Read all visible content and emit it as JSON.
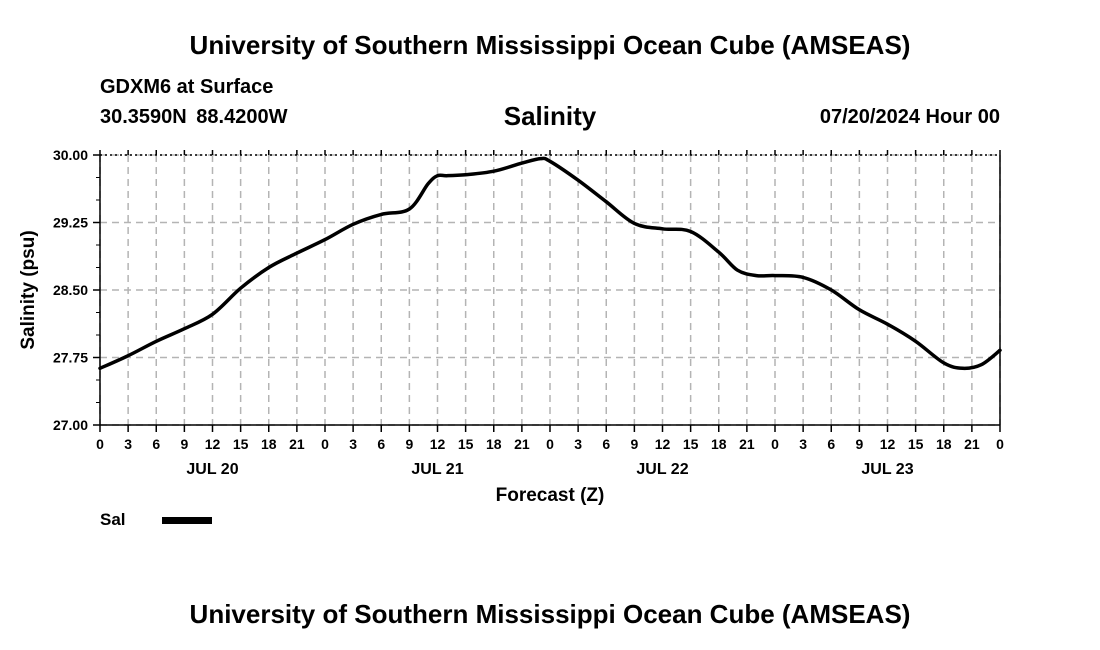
{
  "header": {
    "title": "University of Southern Mississippi Ocean Cube (AMSEAS)",
    "station": "GDXM6 at Surface",
    "coordinates": "30.3590N 88.4200W",
    "datetime": "07/20/2024 Hour 00"
  },
  "footer": {
    "title": "University of Southern Mississippi Ocean Cube (AMSEAS)"
  },
  "legend": {
    "label": "Sal",
    "color": "#000000"
  },
  "chart_data": {
    "type": "line",
    "title": "Salinity",
    "xlabel": "Forecast (Z)",
    "ylabel": "Salinity (psu)",
    "ylim": [
      27.0,
      30.0
    ],
    "xlim": [
      0,
      96
    ],
    "y_ticks": [
      "27.00",
      "27.75",
      "28.50",
      "29.25",
      "30.00"
    ],
    "x_tick_hours": [
      0,
      3,
      6,
      9,
      12,
      15,
      18,
      21,
      24,
      27,
      30,
      33,
      36,
      39,
      42,
      45,
      48,
      51,
      54,
      57,
      60,
      63,
      66,
      69,
      72,
      75,
      78,
      81,
      84,
      87,
      90,
      93,
      96
    ],
    "x_tick_labels": [
      "0",
      "3",
      "6",
      "9",
      "12",
      "15",
      "18",
      "21",
      "0",
      "3",
      "6",
      "9",
      "12",
      "15",
      "18",
      "21",
      "0",
      "3",
      "6",
      "9",
      "12",
      "15",
      "18",
      "21",
      "0",
      "3",
      "6",
      "9",
      "12",
      "15",
      "18",
      "21",
      "0"
    ],
    "day_labels": [
      {
        "hour": 12,
        "label": "JUL 20"
      },
      {
        "hour": 36,
        "label": "JUL 21"
      },
      {
        "hour": 60,
        "label": "JUL 22"
      },
      {
        "hour": 84,
        "label": "JUL 23"
      }
    ],
    "grid": true,
    "series": [
      {
        "name": "Sal",
        "color": "#000000",
        "x": [
          0,
          3,
          6,
          9,
          12,
          15,
          18,
          21,
          24,
          27,
          30,
          33,
          35,
          36,
          37,
          39,
          42,
          45,
          47,
          48,
          51,
          54,
          57,
          60,
          63,
          66,
          68,
          70,
          72,
          75,
          78,
          81,
          84,
          87,
          90,
          92,
          94,
          96
        ],
        "y": [
          27.63,
          27.77,
          27.93,
          28.07,
          28.23,
          28.52,
          28.75,
          28.91,
          29.06,
          29.23,
          29.34,
          29.4,
          29.68,
          29.77,
          29.77,
          29.78,
          29.82,
          29.91,
          29.96,
          29.93,
          29.72,
          29.48,
          29.24,
          29.18,
          29.15,
          28.92,
          28.72,
          28.66,
          28.66,
          28.64,
          28.5,
          28.28,
          28.12,
          27.93,
          27.69,
          27.63,
          27.67,
          27.83
        ]
      }
    ]
  }
}
